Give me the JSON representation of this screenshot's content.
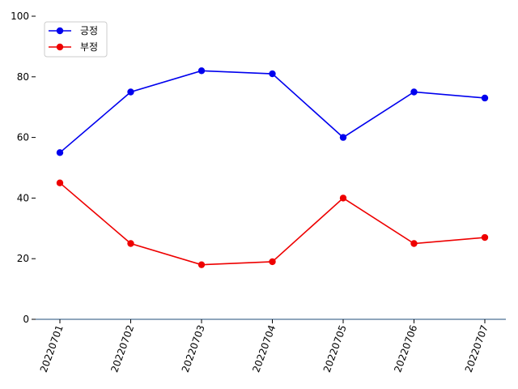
{
  "chart_data": {
    "type": "line",
    "title": "",
    "xlabel": "",
    "ylabel": "",
    "categories": [
      "20220701",
      "20220702",
      "20220703",
      "20220704",
      "20220705",
      "20220706",
      "20220707"
    ],
    "ylim": [
      0,
      100
    ],
    "yticks": [
      0,
      20,
      40,
      60,
      80,
      100
    ],
    "grid": false,
    "legend_position": "top-left",
    "series": [
      {
        "name": "긍정",
        "color": "#0000ee",
        "values": [
          55,
          75,
          82,
          81,
          60,
          75,
          73
        ]
      },
      {
        "name": "부정",
        "color": "#ee0000",
        "values": [
          45,
          25,
          18,
          19,
          40,
          25,
          27
        ]
      }
    ],
    "axis_color": "#1f4e79"
  }
}
